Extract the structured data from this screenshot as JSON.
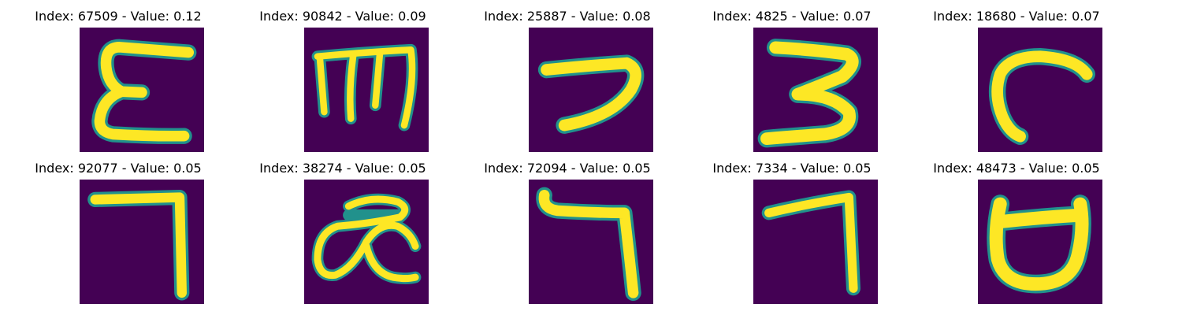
{
  "colors": {
    "background": "#440154",
    "stroke_core": "#FDE725",
    "stroke_edge": "#35B779",
    "stroke_halo": "#21918C"
  },
  "samples": [
    {
      "title": "Index: 67509 - Value: 0.12",
      "glyph": "epsilon-like character"
    },
    {
      "title": "Index: 90842 - Value: 0.09",
      "glyph": "m-like character"
    },
    {
      "title": "Index: 25887 - Value: 0.08",
      "glyph": "reversed c character"
    },
    {
      "title": "Index: 4825 - Value: 0.07",
      "glyph": "3-like character"
    },
    {
      "title": "Index: 18680 - Value: 0.07",
      "glyph": "c-like character"
    },
    {
      "title": "Index: 92077 - Value: 0.05",
      "glyph": "7-like character"
    },
    {
      "title": "Index: 38274 - Value: 0.05",
      "glyph": "ae-like ligature character"
    },
    {
      "title": "Index: 72094 - Value: 0.05",
      "glyph": "7-like character"
    },
    {
      "title": "Index: 7334 - Value: 0.05",
      "glyph": "7-like character"
    },
    {
      "title": "Index: 48473 - Value: 0.05",
      "glyph": "cup-like character"
    }
  ]
}
